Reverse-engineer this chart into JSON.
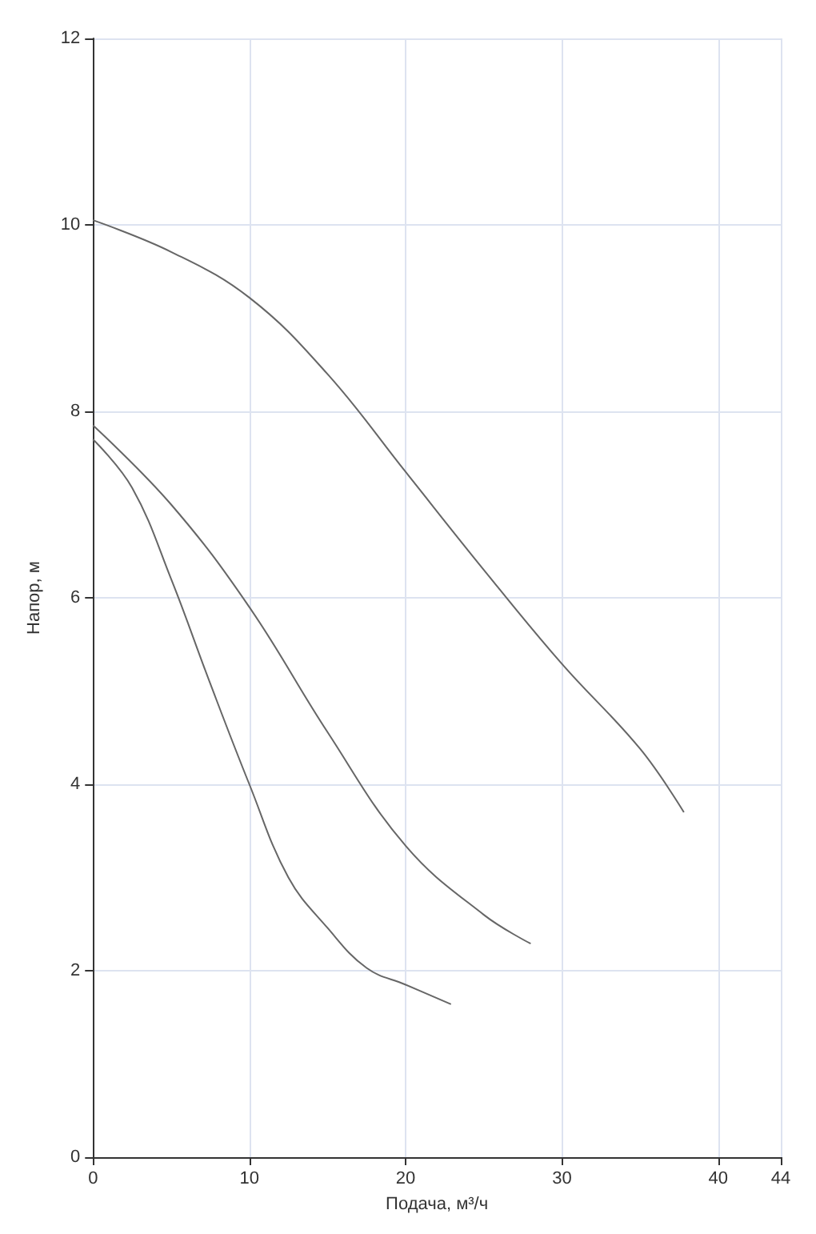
{
  "chart_data": {
    "type": "line",
    "xlabel": "Подача, м³/ч",
    "ylabel": "Напор, м",
    "xlim": [
      0,
      44
    ],
    "xticks": [
      0,
      10,
      20,
      30,
      40,
      44
    ],
    "ylim": [
      0,
      12
    ],
    "yticks": [
      0,
      2,
      4,
      6,
      8,
      10,
      12
    ],
    "grid": true,
    "marker": "none",
    "line_style": "solid",
    "series": [
      {
        "color": "#666666",
        "x": [
          0,
          5,
          10,
          15,
          20,
          25,
          30,
          35,
          37.8
        ],
        "values": [
          10.05,
          9.71,
          9.22,
          8.4,
          7.35,
          6.3,
          5.29,
          4.38,
          3.7
        ]
      },
      {
        "color": "#666666",
        "x": [
          0,
          5,
          10,
          15,
          20,
          25,
          28
        ],
        "values": [
          7.85,
          7.0,
          5.9,
          4.56,
          3.34,
          2.6,
          2.29
        ]
      },
      {
        "color": "#666666",
        "x": [
          0,
          2.5,
          5,
          7.5,
          10,
          12.5,
          15,
          17.5,
          20,
          22.9
        ],
        "values": [
          7.7,
          7.18,
          6.2,
          5.08,
          4.0,
          3.0,
          2.46,
          2.03,
          1.85,
          1.64
        ]
      }
    ]
  }
}
